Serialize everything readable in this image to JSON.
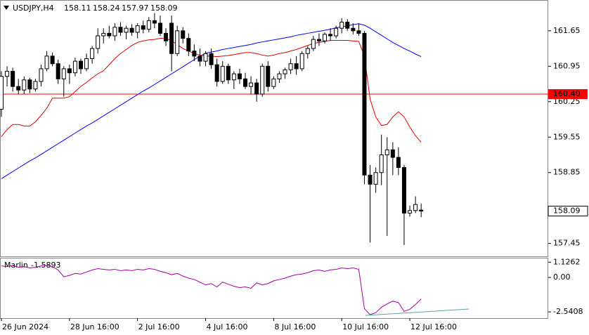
{
  "chart_data": [
    {
      "type": "candlestick",
      "symbol": "USDJPY,H4",
      "categories": [
        "26 Jun 2024",
        null,
        null,
        null,
        null,
        null,
        null,
        null,
        null,
        null,
        null,
        null,
        "28 Jun 16:00",
        null,
        null,
        null,
        null,
        null,
        null,
        null,
        null,
        null,
        null,
        null,
        "2 Jul 16:00",
        null,
        null,
        null,
        null,
        null,
        null,
        null,
        null,
        null,
        null,
        null,
        "4 Jul 16:00",
        null,
        null,
        null,
        null,
        null,
        null,
        null,
        null,
        null,
        null,
        null,
        "8 Jul 16:00",
        null,
        null,
        null,
        null,
        null,
        null,
        null,
        null,
        null,
        null,
        null,
        "10 Jul 16:00",
        null,
        null,
        null,
        null,
        null,
        null,
        null,
        null,
        null,
        null,
        null,
        "12 Jul 16:00",
        null,
        null
      ],
      "open": [
        160.1,
        160.75,
        160.85,
        160.55,
        160.48,
        160.68,
        160.5,
        160.65,
        160.9,
        161.15,
        161.0,
        160.7,
        160.9,
        160.82,
        161.05,
        160.9,
        161.1,
        161.3,
        161.55,
        161.6,
        161.55,
        161.72,
        161.62,
        161.7,
        161.62,
        161.75,
        161.68,
        161.85,
        161.8,
        161.6,
        161.8,
        161.2,
        161.65,
        161.5,
        161.25,
        161.15,
        161.05,
        161.2,
        160.98,
        160.65,
        160.95,
        160.68,
        160.8,
        160.7,
        160.55,
        160.62,
        160.4,
        160.95,
        160.55,
        160.7,
        160.8,
        160.88,
        161.0,
        160.9,
        161.2,
        161.3,
        161.48,
        161.45,
        161.58,
        161.55,
        161.7,
        161.82,
        161.7,
        161.65,
        161.6,
        158.8,
        158.62,
        158.85,
        159.2,
        159.3,
        159.15,
        158.95,
        158.05,
        158.1,
        158.11
      ],
      "high": [
        160.85,
        160.95,
        160.92,
        160.7,
        160.75,
        160.72,
        160.7,
        160.98,
        161.25,
        161.22,
        161.08,
        160.95,
        160.98,
        161.12,
        161.1,
        161.2,
        161.35,
        161.7,
        161.7,
        161.75,
        161.8,
        161.82,
        161.75,
        161.78,
        161.8,
        161.85,
        161.92,
        162.0,
        161.95,
        161.7,
        161.95,
        161.75,
        161.72,
        161.6,
        161.38,
        161.3,
        161.25,
        161.3,
        161.1,
        161.05,
        161.0,
        160.85,
        160.9,
        160.82,
        160.75,
        160.7,
        161.0,
        161.05,
        160.75,
        160.85,
        160.92,
        161.1,
        161.15,
        161.25,
        161.35,
        161.55,
        161.6,
        161.62,
        161.7,
        161.75,
        161.9,
        161.88,
        161.8,
        161.8,
        161.65,
        159.0,
        158.95,
        159.6,
        159.55,
        159.45,
        159.35,
        159.0,
        158.2,
        158.38,
        158.24
      ],
      "low": [
        159.95,
        160.55,
        160.45,
        160.4,
        160.4,
        160.42,
        160.45,
        160.55,
        160.85,
        160.95,
        160.6,
        160.35,
        160.6,
        160.75,
        160.8,
        160.85,
        161.0,
        161.2,
        161.4,
        161.5,
        161.45,
        161.55,
        161.48,
        161.55,
        161.5,
        161.6,
        161.62,
        161.7,
        161.55,
        161.35,
        160.85,
        161.15,
        161.4,
        161.15,
        161.05,
        160.95,
        160.95,
        160.9,
        160.55,
        160.6,
        160.6,
        160.5,
        160.6,
        160.5,
        160.4,
        160.25,
        160.35,
        160.45,
        160.5,
        160.62,
        160.7,
        160.8,
        160.78,
        160.85,
        161.1,
        161.25,
        161.35,
        161.4,
        161.45,
        161.5,
        161.6,
        161.65,
        161.58,
        161.55,
        158.62,
        157.47,
        158.45,
        158.6,
        157.6,
        158.8,
        158.8,
        157.42,
        157.98,
        158.05,
        157.97
      ],
      "close": [
        160.75,
        160.85,
        160.55,
        160.48,
        160.68,
        160.5,
        160.65,
        160.9,
        161.15,
        161.0,
        160.7,
        160.9,
        160.82,
        161.05,
        160.9,
        161.1,
        161.3,
        161.55,
        161.6,
        161.55,
        161.72,
        161.62,
        161.7,
        161.62,
        161.75,
        161.68,
        161.85,
        161.8,
        161.6,
        161.45,
        161.2,
        161.65,
        161.5,
        161.25,
        161.15,
        161.05,
        161.2,
        160.98,
        160.65,
        160.95,
        160.68,
        160.8,
        160.7,
        160.55,
        160.62,
        160.4,
        160.95,
        160.55,
        160.7,
        160.8,
        160.88,
        161.0,
        160.9,
        161.2,
        161.3,
        161.48,
        161.45,
        161.58,
        161.55,
        161.7,
        161.82,
        161.7,
        161.65,
        161.6,
        158.8,
        158.62,
        158.85,
        159.2,
        159.3,
        159.15,
        158.95,
        158.05,
        158.1,
        158.22,
        158.09
      ],
      "series": [
        {
          "color": "#0000ff",
          "values": [
            158.73,
            158.8,
            158.87,
            158.94,
            159.01,
            159.08,
            159.14,
            159.21,
            159.28,
            159.35,
            159.42,
            159.49,
            159.56,
            159.63,
            159.7,
            159.77,
            159.83,
            159.9,
            159.97,
            160.04,
            160.11,
            160.18,
            160.25,
            160.32,
            160.39,
            160.46,
            160.52,
            160.59,
            160.66,
            160.73,
            160.8,
            160.87,
            160.94,
            161.01,
            161.08,
            161.15,
            161.21,
            161.23,
            161.25,
            161.28,
            161.3,
            161.32,
            161.34,
            161.36,
            161.38,
            161.41,
            161.43,
            161.45,
            161.47,
            161.49,
            161.51,
            161.53,
            161.56,
            161.58,
            161.6,
            161.62,
            161.64,
            161.66,
            161.68,
            161.71,
            161.73,
            161.75,
            161.77,
            161.79,
            161.76,
            161.7,
            161.63,
            161.56,
            161.49,
            161.42,
            161.36,
            161.3,
            161.25,
            161.19,
            161.14
          ]
        },
        {
          "color": "#e00000",
          "values": [
            159.56,
            159.7,
            159.8,
            159.8,
            159.77,
            159.77,
            159.85,
            159.98,
            160.12,
            160.32,
            160.32,
            160.32,
            160.35,
            160.45,
            160.55,
            160.63,
            160.72,
            160.8,
            160.86,
            160.98,
            161.1,
            161.2,
            161.28,
            161.36,
            161.42,
            161.45,
            161.47,
            161.48,
            161.5,
            161.5,
            161.45,
            161.38,
            161.3,
            161.25,
            161.2,
            161.17,
            161.15,
            161.15,
            161.14,
            161.15,
            161.16,
            161.18,
            161.2,
            161.22,
            161.22,
            161.2,
            161.17,
            161.15,
            161.17,
            161.2,
            161.22,
            161.25,
            161.28,
            161.32,
            161.36,
            161.4,
            161.42,
            161.44,
            161.46,
            161.46,
            161.46,
            161.46,
            161.45,
            161.44,
            161.15,
            160.3,
            159.95,
            159.78,
            159.8,
            159.95,
            160.05,
            159.95,
            159.75,
            159.58,
            159.45
          ]
        }
      ],
      "hline": {
        "value": 160.4,
        "label": "160.40",
        "color": "#ff0000"
      },
      "ylim": [
        157.21,
        162.23
      ],
      "yticks": [
        161.65,
        160.95,
        160.25,
        159.55,
        158.85,
        157.45
      ]
    },
    {
      "type": "line",
      "name": "Marlin",
      "color": "#a000a0",
      "values": [
        0.85,
        0.8,
        0.88,
        0.75,
        0.8,
        0.7,
        0.75,
        0.85,
        0.9,
        0.8,
        0.55,
        0.05,
        0.15,
        0.3,
        0.25,
        0.4,
        0.55,
        0.65,
        0.6,
        0.55,
        0.6,
        0.5,
        0.55,
        0.5,
        0.6,
        0.55,
        0.65,
        0.6,
        0.45,
        0.35,
        0.2,
        0.3,
        0.1,
        -0.05,
        -0.15,
        -0.35,
        -0.55,
        -0.45,
        -0.7,
        -0.35,
        -0.5,
        -0.65,
        -0.75,
        -0.7,
        -0.8,
        -0.4,
        -0.55,
        -0.45,
        -0.25,
        -0.15,
        -0.05,
        0.1,
        0.2,
        0.25,
        0.35,
        0.5,
        0.55,
        0.45,
        0.55,
        0.6,
        0.7,
        0.65,
        0.7,
        0.6,
        -2.3,
        -2.75,
        -2.6,
        -2.2,
        -1.95,
        -1.75,
        -1.85,
        -2.5,
        -2.35,
        -2.0,
        -1.5893
      ],
      "trendline": {
        "x": [
          64.2,
          82.4
        ],
        "values": [
          -2.8,
          -2.33
        ],
        "color": "#5f9ea0"
      },
      "ylim": [
        -2.95,
        1.4
      ],
      "yticks": [
        1.1262,
        {
          "value": 0,
          "label": "0.00"
        },
        -2.5408
      ]
    }
  ]
}
